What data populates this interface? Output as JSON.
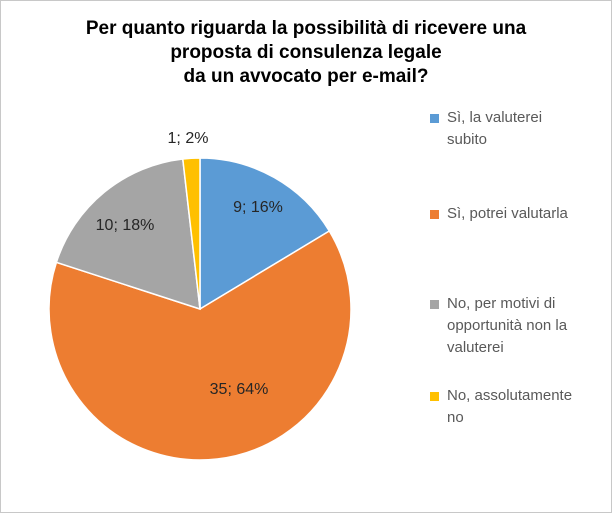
{
  "chart_data": {
    "type": "pie",
    "title_lines": [
      "Per quanto riguarda la possibilità di ricevere una",
      "proposta di consulenza legale",
      "da un avvocato per e-mail?"
    ],
    "slices": [
      {
        "name_lines": [
          "Sì, la valuterei",
          "subito"
        ],
        "value": 9,
        "percent": 16,
        "label": "9; 16%",
        "color": "#5b9bd5"
      },
      {
        "name_lines": [
          "Sì, potrei valutarla"
        ],
        "value": 35,
        "percent": 64,
        "label": "35; 64%",
        "color": "#ed7d31"
      },
      {
        "name_lines": [
          "No, per motivi di",
          "opportunità non la",
          "valuterei"
        ],
        "value": 10,
        "percent": 18,
        "label": "10; 18%",
        "color": "#a5a5a5"
      },
      {
        "name_lines": [
          "No, assolutamente",
          "no"
        ],
        "value": 1,
        "percent": 2,
        "label": "1; 2%",
        "color": "#ffc000"
      }
    ],
    "start_angle_deg": 0,
    "direction": "clockwise",
    "legend_position": "right"
  }
}
